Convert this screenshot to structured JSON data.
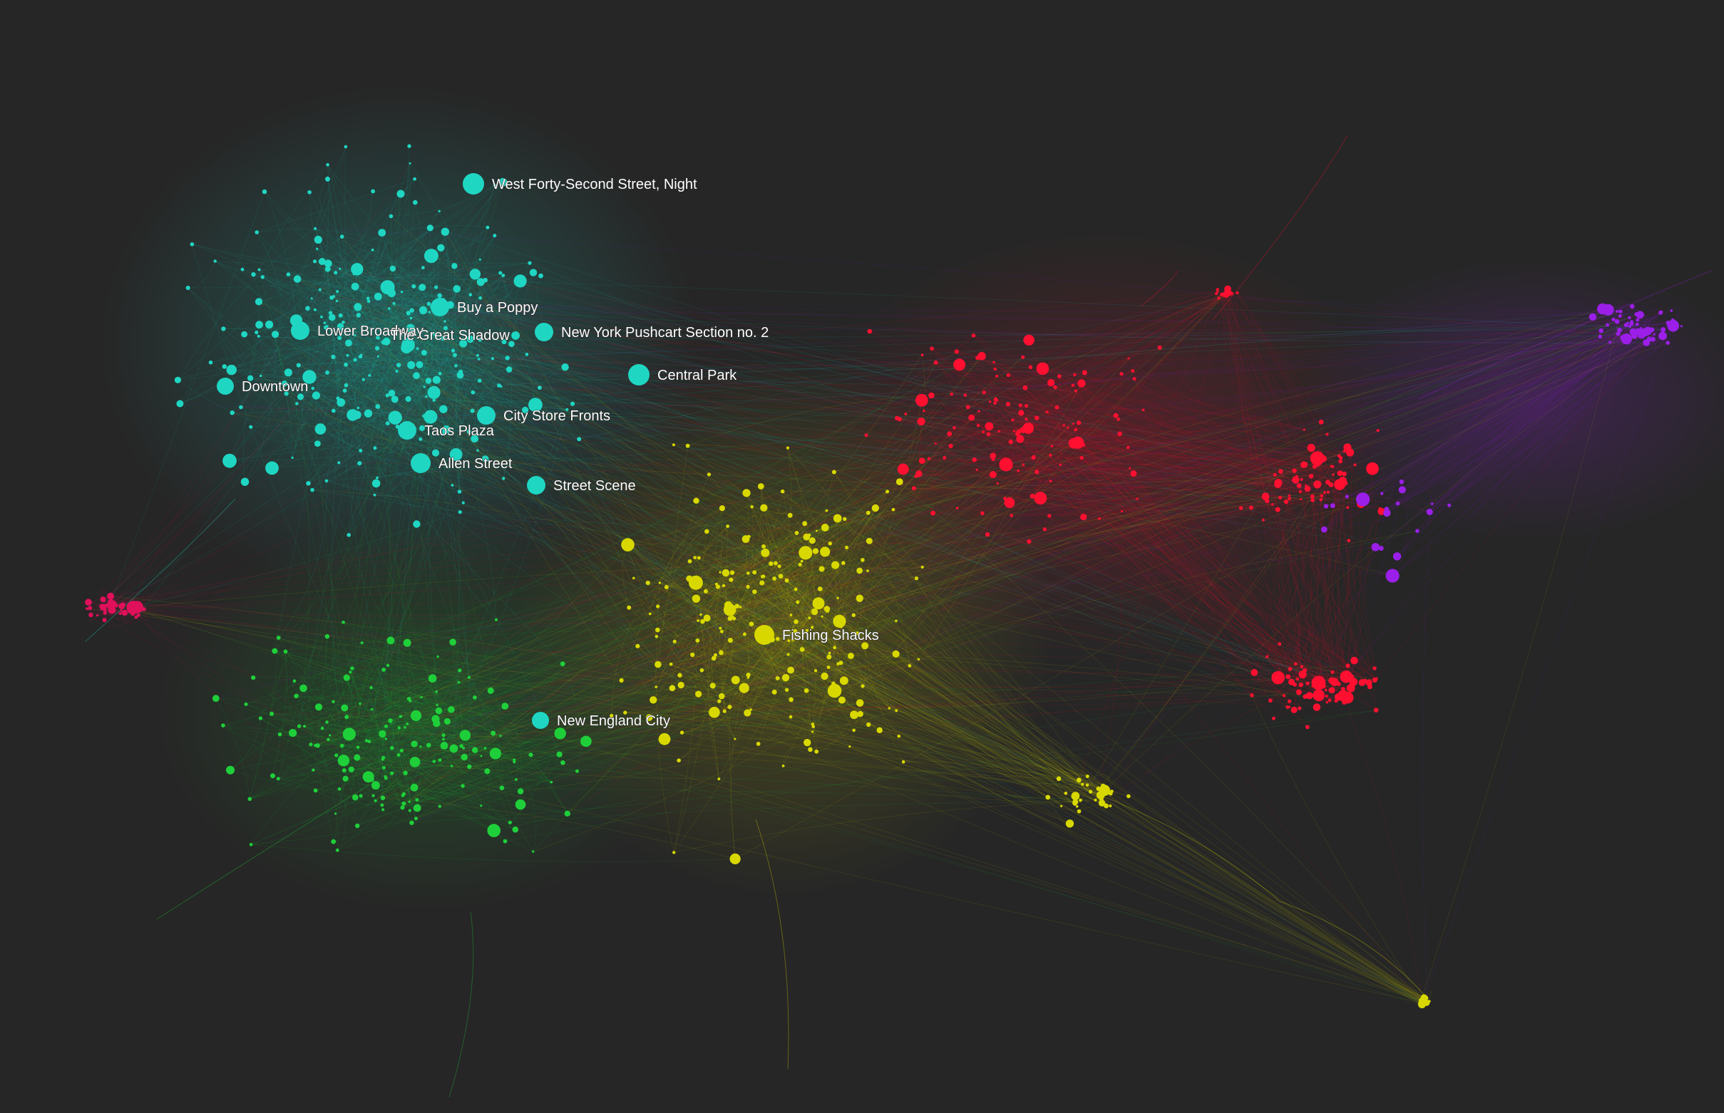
{
  "colors": {
    "background": "#262626",
    "cyan": "#1fd6c3",
    "green": "#1fcf3a",
    "yellow": "#d8d800",
    "red": "#ff1030",
    "pink": "#e0105a",
    "purple": "#9b1fe8",
    "label": "#ffffff"
  },
  "clusters": [
    {
      "id": "cyan",
      "color_key": "cyan"
    },
    {
      "id": "green",
      "color_key": "green"
    },
    {
      "id": "yellow",
      "color_key": "yellow"
    },
    {
      "id": "red",
      "color_key": "red"
    },
    {
      "id": "pink",
      "color_key": "pink"
    },
    {
      "id": "purple",
      "color_key": "purple"
    }
  ],
  "labeled_nodes": [
    {
      "label": "West Forty-Second Street, Night",
      "cluster": "cyan"
    },
    {
      "label": "Buy a Poppy",
      "cluster": "cyan"
    },
    {
      "label": "Lower Broadway",
      "cluster": "cyan"
    },
    {
      "label": "The Great Shadow",
      "cluster": "cyan"
    },
    {
      "label": "New York Pushcart Section no. 2",
      "cluster": "cyan"
    },
    {
      "label": "Central Park",
      "cluster": "cyan"
    },
    {
      "label": "Downtown",
      "cluster": "cyan"
    },
    {
      "label": "City Store Fronts",
      "cluster": "cyan"
    },
    {
      "label": "Taos Plaza",
      "cluster": "cyan"
    },
    {
      "label": "Allen Street",
      "cluster": "cyan"
    },
    {
      "label": "Street Scene",
      "cluster": "cyan"
    },
    {
      "label": "Fishing Shacks",
      "cluster": "yellow"
    },
    {
      "label": "New England City",
      "cluster": "cyan"
    }
  ]
}
